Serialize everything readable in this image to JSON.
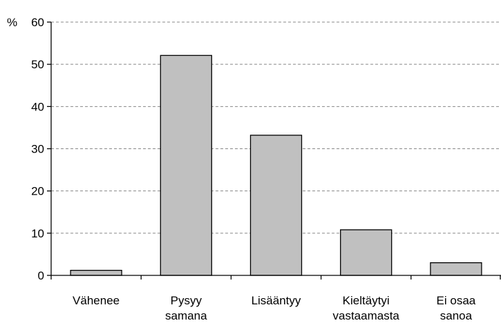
{
  "chart_data": {
    "type": "bar",
    "unit_label": "%",
    "categories": [
      [
        "Vähenee"
      ],
      [
        "Pysyy",
        "samana"
      ],
      [
        "Lisääntyy"
      ],
      [
        "Kieltäytyi",
        "vastaamasta"
      ],
      [
        "Ei osaa",
        "sanoa"
      ]
    ],
    "values": [
      1.2,
      52.1,
      33.2,
      10.8,
      3.0
    ],
    "y_ticks": [
      0,
      10,
      20,
      30,
      40,
      50,
      60
    ],
    "ylim": [
      0,
      60
    ],
    "grid": true,
    "colors": {
      "bar_fill": "#c0c0c0",
      "bar_stroke": "#000000",
      "grid": "#888888",
      "axis": "#000000"
    }
  }
}
